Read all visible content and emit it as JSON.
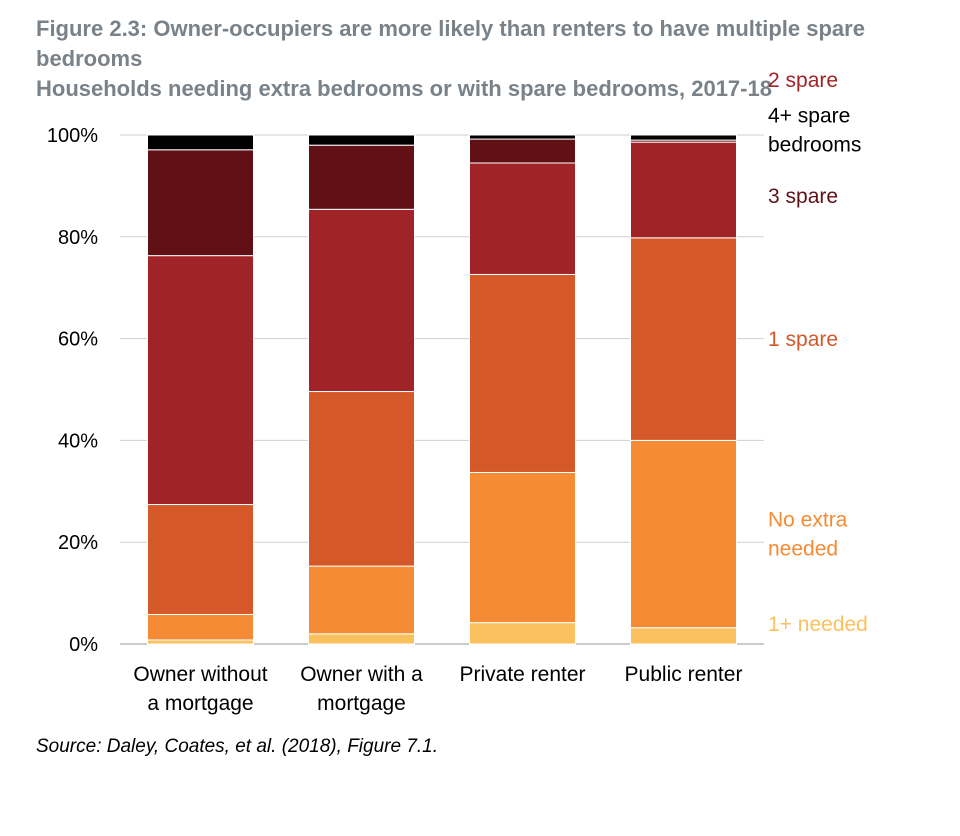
{
  "figure": {
    "title": "Figure 2.3: Owner-occupiers are more likely than renters to have multiple spare bedrooms",
    "subtitle": "Households needing extra bedrooms or with spare bedrooms, 2017-18",
    "source": "Source: Daley, Coates, et al. (2018), Figure 7.1."
  },
  "chart_data": {
    "type": "bar",
    "stacked": true,
    "categories": [
      [
        "Owner without",
        "a mortgage"
      ],
      [
        "Owner with a",
        "mortgage"
      ],
      [
        "Private renter"
      ],
      [
        "Public renter"
      ]
    ],
    "series": [
      {
        "name": "1+ needed",
        "label_lines": [
          "1+ needed"
        ],
        "color": "#fbc15e",
        "values": [
          0.8,
          2.0,
          4.2,
          3.2
        ]
      },
      {
        "name": "No extra needed",
        "label_lines": [
          "No extra",
          "needed"
        ],
        "color": "#f58b34",
        "values": [
          5.0,
          13.3,
          29.5,
          36.8
        ]
      },
      {
        "name": "1 spare",
        "label_lines": [
          "1 spare"
        ],
        "color": "#d45828",
        "values": [
          21.6,
          34.3,
          38.9,
          39.8
        ]
      },
      {
        "name": "2 spare",
        "label_lines": [
          "2 spare"
        ],
        "color": "#a02327",
        "values": [
          48.9,
          35.8,
          21.9,
          18.8
        ]
      },
      {
        "name": "3 spare",
        "label_lines": [
          "3 spare"
        ],
        "color": "#611016",
        "values": [
          20.8,
          12.6,
          4.7,
          0.4
        ]
      },
      {
        "name": "4+ spare bedrooms",
        "label_lines": [
          "4+ spare",
          "bedrooms"
        ],
        "color": "#000000",
        "values": [
          2.9,
          2.0,
          0.8,
          1.0
        ]
      }
    ],
    "ylim": [
      0,
      100
    ],
    "yticks": [
      "0%",
      "20%",
      "40%",
      "60%",
      "80%",
      "100%"
    ],
    "ytick_values": [
      0,
      20,
      40,
      60,
      80,
      100
    ],
    "grid": true,
    "legend": "right, labels aligned to segments"
  }
}
